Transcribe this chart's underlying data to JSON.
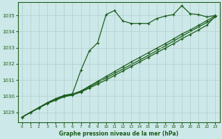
{
  "bg_color": "#cde8e8",
  "grid_color": "#b0cccc",
  "line_color": "#1a5c1a",
  "xlabel": "Graphe pression niveau de la mer (hPa)",
  "xlabel_color": "#1a5c1a",
  "xlim": [
    -0.5,
    23.5
  ],
  "ylim": [
    1028.4,
    1035.8
  ],
  "yticks": [
    1029,
    1030,
    1031,
    1032,
    1033,
    1034,
    1035
  ],
  "xticks": [
    0,
    1,
    2,
    3,
    4,
    5,
    6,
    7,
    8,
    9,
    10,
    11,
    12,
    13,
    14,
    15,
    16,
    17,
    18,
    19,
    20,
    21,
    22,
    23
  ],
  "series1_x": [
    0,
    1,
    2,
    3,
    4,
    5,
    6,
    7,
    8,
    9,
    10,
    11,
    12,
    13,
    14,
    15,
    16,
    17,
    18,
    19,
    20,
    21,
    22,
    23
  ],
  "series1_y": [
    1028.7,
    1029.0,
    1029.3,
    1029.6,
    1029.85,
    1030.05,
    1030.15,
    1031.6,
    1032.8,
    1033.3,
    1035.05,
    1035.3,
    1034.65,
    1034.5,
    1034.5,
    1034.5,
    1034.8,
    1034.95,
    1035.05,
    1035.6,
    1035.1,
    1035.05,
    1034.9,
    1035.0
  ],
  "series2_x": [
    0,
    1,
    2,
    3,
    4,
    5,
    6,
    7,
    8,
    9,
    10,
    11,
    12,
    13,
    14,
    15,
    16,
    17,
    18,
    19,
    20,
    21,
    22,
    23
  ],
  "series2_y": [
    1028.7,
    1028.98,
    1029.26,
    1029.54,
    1029.75,
    1029.96,
    1030.07,
    1030.25,
    1030.5,
    1030.75,
    1031.0,
    1031.28,
    1031.56,
    1031.84,
    1032.12,
    1032.4,
    1032.68,
    1032.96,
    1033.24,
    1033.55,
    1033.82,
    1034.1,
    1034.4,
    1034.95
  ],
  "series3_x": [
    0,
    1,
    2,
    3,
    4,
    5,
    6,
    7,
    8,
    9,
    10,
    11,
    12,
    13,
    14,
    15,
    16,
    17,
    18,
    19,
    20,
    21,
    22,
    23
  ],
  "series3_y": [
    1028.7,
    1029.0,
    1029.28,
    1029.56,
    1029.8,
    1030.02,
    1030.13,
    1030.32,
    1030.62,
    1030.92,
    1031.22,
    1031.52,
    1031.82,
    1032.12,
    1032.4,
    1032.68,
    1032.96,
    1033.24,
    1033.54,
    1033.84,
    1034.1,
    1034.38,
    1034.68,
    1034.98
  ],
  "series4_x": [
    0,
    1,
    2,
    3,
    4,
    5,
    6,
    7,
    8,
    9,
    10,
    11,
    12,
    13,
    14,
    15,
    16,
    17,
    18,
    19,
    20,
    21,
    22,
    23
  ],
  "series4_y": [
    1028.7,
    1029.0,
    1029.28,
    1029.56,
    1029.8,
    1030.0,
    1030.1,
    1030.28,
    1030.56,
    1030.84,
    1031.12,
    1031.4,
    1031.68,
    1031.96,
    1032.24,
    1032.52,
    1032.8,
    1033.1,
    1033.4,
    1033.7,
    1034.0,
    1034.28,
    1034.56,
    1034.9
  ]
}
